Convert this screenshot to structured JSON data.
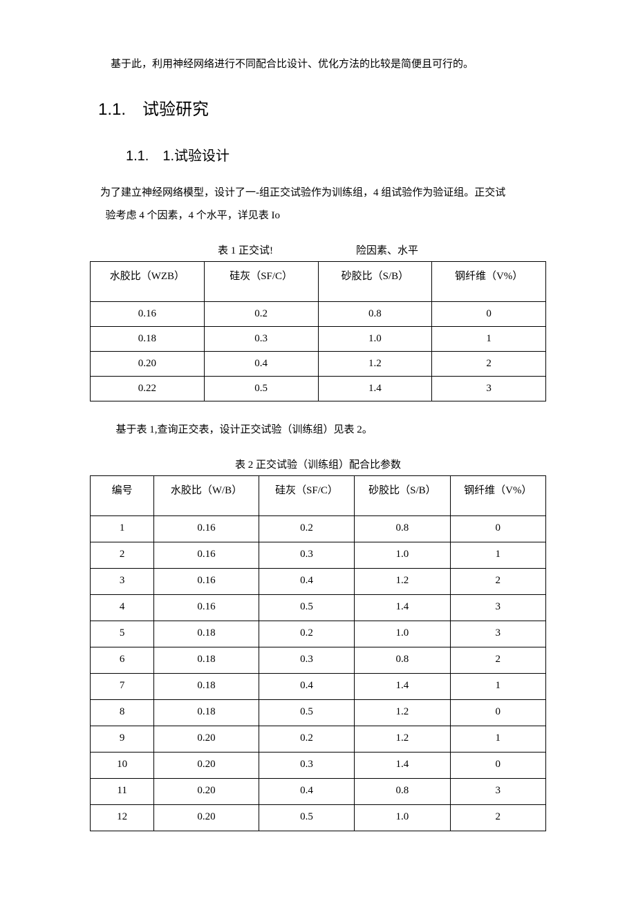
{
  "intro": "基于此，利用神经网络进行不同配合比设计、优化方法的比较是简便且可行的。",
  "heading1": "1.1.　试验研究",
  "heading2": "1.1.　1.试验设计",
  "para1": "为了建立神经网络模型，设计了一-组正交试验作为训练组，4 组试验作为验证组。正交试",
  "para2": "验考虑 4 个因素，4 个水平，详见表 Io",
  "table1": {
    "caption_left": "表 1 正交试!",
    "caption_right": "险因素、水平",
    "columns": [
      "水胶比（WZB）",
      "硅灰（SF/C）",
      "砂胶比（S/B）",
      "钢纤维（V%）"
    ],
    "col_widths": [
      "25%",
      "25%",
      "25%",
      "25%"
    ],
    "rows": [
      [
        "0.16",
        "0.2",
        "0.8",
        "0"
      ],
      [
        "0.18",
        "0.3",
        "1.0",
        "1"
      ],
      [
        "0.20",
        "0.4",
        "1.2",
        "2"
      ],
      [
        "0.22",
        "0.5",
        "1.4",
        "3"
      ]
    ]
  },
  "after_t1": "基于表 1,查询正交表，设计正交试验（训练组）见表 2。",
  "table2": {
    "caption": "表 2 正交试验（训练组）配合比参数",
    "columns": [
      "编号",
      "水胶比（W/B）",
      "硅灰（SF/C）",
      "砂胶比（S/B）",
      "钢纤维（V%）"
    ],
    "col_widths": [
      "14%",
      "23%",
      "21%",
      "21%",
      "21%"
    ],
    "rows": [
      [
        "1",
        "0.16",
        "0.2",
        "0.8",
        "0"
      ],
      [
        "2",
        "0.16",
        "0.3",
        "1.0",
        "1"
      ],
      [
        "3",
        "0.16",
        "0.4",
        "1.2",
        "2"
      ],
      [
        "4",
        "0.16",
        "0.5",
        "1.4",
        "3"
      ],
      [
        "5",
        "0.18",
        "0.2",
        "1.0",
        "3"
      ],
      [
        "6",
        "0.18",
        "0.3",
        "0.8",
        "2"
      ],
      [
        "7",
        "0.18",
        "0.4",
        "1.4",
        "1"
      ],
      [
        "8",
        "0.18",
        "0.5",
        "1.2",
        "0"
      ],
      [
        "9",
        "0.20",
        "0.2",
        "1.2",
        "1"
      ],
      [
        "10",
        "0.20",
        "0.3",
        "1.4",
        "0"
      ],
      [
        "11",
        "0.20",
        "0.4",
        "0.8",
        "3"
      ],
      [
        "12",
        "0.20",
        "0.5",
        "1.0",
        "2"
      ]
    ],
    "tight_rows": [
      7,
      8
    ]
  },
  "styling": {
    "body_bg": "#ffffff",
    "text_color": "#000000",
    "border_color": "#000000",
    "base_fontsize": 15,
    "h1_fontsize": 24,
    "h2_fontsize": 20
  }
}
